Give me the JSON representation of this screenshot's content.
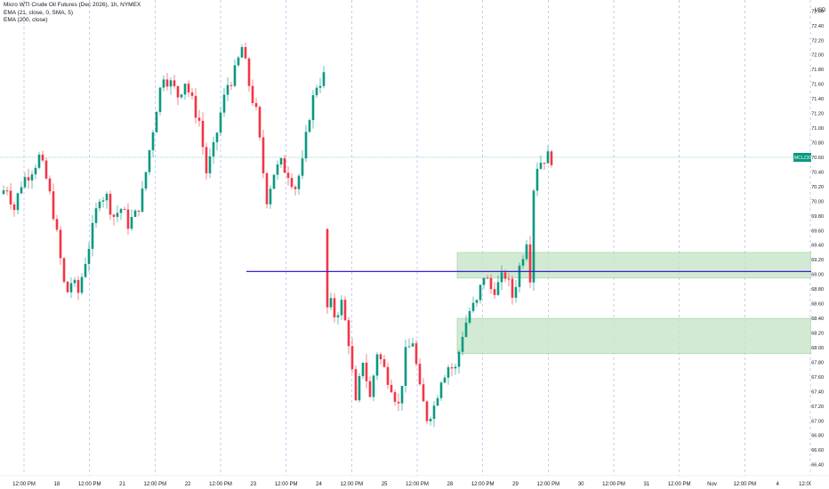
{
  "legend": {
    "symbol": "Micro WTI Crude Oil Futures (Dec 2026), 1h, NYMEX",
    "ema1": "EMA (21, close, 0, SMA, 5)",
    "ema2": "EMA (200, close)"
  },
  "price_axis": {
    "currency": "USD",
    "ticks": [
      "72.60",
      "72.40",
      "72.20",
      "72.00",
      "71.80",
      "71.60",
      "71.40",
      "71.20",
      "71.00",
      "70.80",
      "70.60",
      "70.40",
      "70.20",
      "70.00",
      "69.80",
      "69.60",
      "69.40",
      "69.20",
      "69.00",
      "68.80",
      "68.60",
      "68.40",
      "68.20",
      "68.00",
      "67.80",
      "67.60",
      "67.40",
      "67.20",
      "67.00",
      "66.80",
      "66.60",
      "66.40"
    ],
    "last_price_label": "MCLZ2026",
    "last_price": "70.60",
    "countdown": "23:09",
    "level_price": "69.04"
  },
  "time_axis": {
    "labels": [
      "12:00 PM",
      "18",
      "12:00 PM",
      "21",
      "12:00 PM",
      "22",
      "12:00 PM",
      "23",
      "12:00 PM",
      "24",
      "12:00 PM",
      "25",
      "12:00 PM",
      "28",
      "12:00 PM",
      "29",
      "12:00 PM",
      "30",
      "12:00 PM",
      "31",
      "12:00 PM",
      "Nov",
      "12:00 PM",
      "4",
      "12:00 PM"
    ]
  },
  "colors": {
    "up": "#089981",
    "down": "#f23645",
    "level_line": "#3d1fd6",
    "zone_fill": "#c8e6c9",
    "zone_border": "#81c784",
    "last_price_line": "#089981",
    "grid_vertical": "#7a8ee0"
  },
  "chart_data": {
    "type": "candlestick",
    "title": "Micro WTI Crude Oil Futures (Dec 2026), 1h, NYMEX",
    "ylim": [
      66.25,
      72.75
    ],
    "horizontal_level": 69.04,
    "last_price": 70.6,
    "zones": [
      {
        "from": 68.95,
        "to": 69.3
      },
      {
        "from": 67.92,
        "to": 68.4
      }
    ],
    "session_path": [
      [
        0,
        70.1
      ],
      [
        2,
        70.2
      ],
      [
        4,
        69.9
      ],
      [
        6,
        70.25
      ],
      [
        9,
        70.45
      ],
      [
        11,
        70.6
      ],
      [
        13,
        70.3
      ],
      [
        15,
        69.85
      ],
      [
        17,
        69.2
      ],
      [
        18.5,
        68.7
      ],
      [
        20,
        68.9
      ],
      [
        22,
        68.75
      ],
      [
        24,
        69.2
      ],
      [
        26,
        69.6
      ],
      [
        28,
        70.1
      ],
      [
        30,
        70.05
      ],
      [
        32,
        69.8
      ],
      [
        34,
        69.9
      ],
      [
        36,
        69.7
      ],
      [
        38,
        69.8
      ],
      [
        40,
        70.1
      ],
      [
        42,
        70.7
      ],
      [
        44,
        71.3
      ],
      [
        46,
        71.75
      ],
      [
        48,
        71.6
      ],
      [
        50,
        71.45
      ],
      [
        52,
        71.65
      ],
      [
        54,
        71.35
      ],
      [
        56,
        71.1
      ],
      [
        58,
        70.4
      ],
      [
        60,
        70.7
      ],
      [
        62,
        71.2
      ],
      [
        64,
        71.6
      ],
      [
        66,
        71.75
      ],
      [
        68,
        72.1
      ],
      [
        70,
        71.6
      ],
      [
        72,
        71.2
      ],
      [
        74,
        70.4
      ],
      [
        75,
        70.05
      ],
      [
        77,
        70.4
      ],
      [
        79,
        70.5
      ],
      [
        81,
        70.4
      ],
      [
        83,
        70.2
      ],
      [
        85,
        70.5
      ],
      [
        87,
        71.2
      ],
      [
        89,
        71.6
      ],
      [
        91,
        71.7
      ],
      [
        92,
        68.7
      ],
      [
        94,
        68.45
      ],
      [
        96,
        68.6
      ],
      [
        98,
        68.1
      ],
      [
        100,
        67.2
      ],
      [
        102,
        67.85
      ],
      [
        104,
        67.3
      ],
      [
        106,
        67.95
      ],
      [
        108,
        67.7
      ],
      [
        110,
        67.5
      ],
      [
        112,
        67.2
      ],
      [
        114,
        67.9
      ],
      [
        116,
        68.1
      ],
      [
        118,
        67.4
      ],
      [
        120,
        67.05
      ],
      [
        122,
        67.2
      ],
      [
        124,
        67.6
      ],
      [
        126,
        67.75
      ],
      [
        128,
        67.7
      ],
      [
        130,
        68.2
      ],
      [
        132,
        68.5
      ],
      [
        134,
        68.6
      ],
      [
        136,
        69.0
      ],
      [
        138,
        68.8
      ],
      [
        140,
        68.85
      ],
      [
        142,
        69.0
      ],
      [
        144,
        68.7
      ],
      [
        146,
        69.1
      ],
      [
        148,
        69.5
      ],
      [
        149,
        69.0
      ],
      [
        150,
        70.2
      ],
      [
        151,
        70.5
      ],
      [
        153,
        70.6
      ],
      [
        154,
        70.6
      ]
    ]
  }
}
